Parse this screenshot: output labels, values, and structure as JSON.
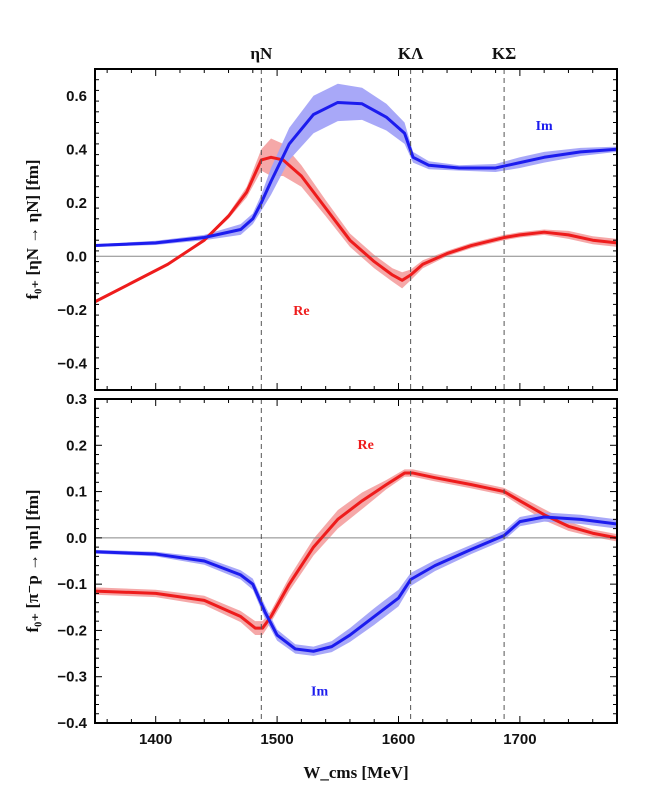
{
  "colors": {
    "re": "#ee1c1c",
    "re_band": "#f4a3a3",
    "im": "#1c1cee",
    "im_band": "#a3a3f8"
  },
  "chart_data": [
    {
      "type": "line",
      "id": "top",
      "ylabel": "f₀₊ [ηN → ηN] [fm]",
      "xlim": [
        1350,
        1780
      ],
      "ylim": [
        -0.5,
        0.7
      ],
      "yticks": [
        -0.4,
        -0.2,
        0.0,
        0.2,
        0.4,
        0.6
      ],
      "ytick_labels": [
        "−0.4",
        "−0.2",
        "0.0",
        "0.2",
        "0.4",
        "0.6"
      ],
      "thresholds": [
        {
          "label": "ηN",
          "x": 1487
        },
        {
          "label": "KΛ",
          "x": 1610
        },
        {
          "label": "KΣ",
          "x": 1687
        }
      ],
      "series": [
        {
          "name": "Re",
          "x": [
            1350,
            1380,
            1410,
            1440,
            1460,
            1475,
            1487,
            1495,
            1505,
            1520,
            1540,
            1560,
            1580,
            1595,
            1603,
            1610,
            1620,
            1640,
            1660,
            1687,
            1700,
            1720,
            1740,
            1760,
            1780
          ],
          "y": [
            -0.17,
            -0.1,
            -0.03,
            0.06,
            0.15,
            0.24,
            0.36,
            0.37,
            0.36,
            0.3,
            0.18,
            0.06,
            -0.02,
            -0.07,
            -0.09,
            -0.07,
            -0.03,
            0.01,
            0.04,
            0.07,
            0.08,
            0.09,
            0.08,
            0.06,
            0.05
          ],
          "band": [
            0.005,
            0.005,
            0.005,
            0.005,
            0.01,
            0.02,
            0.04,
            0.07,
            0.06,
            0.04,
            0.03,
            0.025,
            0.025,
            0.025,
            0.03,
            0.02,
            0.015,
            0.01,
            0.01,
            0.01,
            0.01,
            0.01,
            0.015,
            0.015,
            0.015
          ]
        },
        {
          "name": "Im",
          "x": [
            1350,
            1400,
            1440,
            1470,
            1480,
            1487,
            1495,
            1510,
            1530,
            1550,
            1570,
            1590,
            1605,
            1612,
            1625,
            1650,
            1680,
            1700,
            1720,
            1750,
            1780
          ],
          "y": [
            0.04,
            0.05,
            0.07,
            0.1,
            0.14,
            0.2,
            0.28,
            0.42,
            0.53,
            0.575,
            0.57,
            0.52,
            0.46,
            0.37,
            0.34,
            0.33,
            0.33,
            0.35,
            0.37,
            0.39,
            0.4
          ],
          "band": [
            0.005,
            0.008,
            0.01,
            0.02,
            0.02,
            0.03,
            0.05,
            0.06,
            0.07,
            0.07,
            0.06,
            0.05,
            0.04,
            0.02,
            0.015,
            0.01,
            0.015,
            0.02,
            0.02,
            0.015,
            0.01
          ]
        }
      ],
      "annotations": [
        {
          "text": "Re",
          "x": 1520,
          "y": -0.2,
          "series": "re"
        },
        {
          "text": "Im",
          "x": 1720,
          "y": 0.49,
          "series": "im"
        }
      ]
    },
    {
      "type": "line",
      "id": "bottom",
      "xlabel": "W_cms [MeV]",
      "ylabel": "f₀₊ [π⁻p → ηn] [fm]",
      "xlim": [
        1350,
        1780
      ],
      "ylim": [
        -0.4,
        0.3
      ],
      "xticks": [
        1400,
        1500,
        1600,
        1700
      ],
      "xtick_labels": [
        "1400",
        "1500",
        "1600",
        "1700"
      ],
      "yticks": [
        -0.4,
        -0.3,
        -0.2,
        -0.1,
        0.0,
        0.1,
        0.2,
        0.3
      ],
      "ytick_labels": [
        "−0.4",
        "−0.3",
        "−0.2",
        "−0.1",
        "0.0",
        "0.1",
        "0.2",
        "0.3"
      ],
      "series": [
        {
          "name": "Re",
          "x": [
            1350,
            1400,
            1440,
            1470,
            1482,
            1488,
            1495,
            1510,
            1530,
            1550,
            1570,
            1590,
            1605,
            1612,
            1630,
            1660,
            1687,
            1700,
            1720,
            1740,
            1760,
            1780
          ],
          "y": [
            -0.115,
            -0.12,
            -0.135,
            -0.17,
            -0.195,
            -0.195,
            -0.17,
            -0.1,
            -0.02,
            0.04,
            0.08,
            0.115,
            0.14,
            0.14,
            0.13,
            0.115,
            0.1,
            0.08,
            0.05,
            0.025,
            0.01,
            0.0
          ],
          "band": [
            0.008,
            0.008,
            0.01,
            0.012,
            0.015,
            0.015,
            0.012,
            0.015,
            0.018,
            0.02,
            0.018,
            0.01,
            0.008,
            0.008,
            0.008,
            0.008,
            0.008,
            0.01,
            0.012,
            0.01,
            0.008,
            0.008
          ]
        },
        {
          "name": "Im",
          "x": [
            1350,
            1400,
            1440,
            1470,
            1480,
            1490,
            1500,
            1515,
            1530,
            1545,
            1560,
            1580,
            1600,
            1610,
            1630,
            1660,
            1687,
            1700,
            1720,
            1750,
            1780
          ],
          "y": [
            -0.03,
            -0.035,
            -0.05,
            -0.08,
            -0.1,
            -0.16,
            -0.21,
            -0.24,
            -0.245,
            -0.235,
            -0.21,
            -0.17,
            -0.13,
            -0.09,
            -0.06,
            -0.025,
            0.005,
            0.035,
            0.045,
            0.04,
            0.03
          ],
          "band": [
            0.004,
            0.005,
            0.008,
            0.01,
            0.012,
            0.014,
            0.012,
            0.01,
            0.01,
            0.012,
            0.015,
            0.018,
            0.018,
            0.014,
            0.012,
            0.01,
            0.01,
            0.01,
            0.01,
            0.01,
            0.01
          ]
        }
      ],
      "annotations": [
        {
          "text": "Re",
          "x": 1573,
          "y": 0.203,
          "series": "re"
        },
        {
          "text": "Im",
          "x": 1535,
          "y": -0.33,
          "series": "im"
        }
      ]
    }
  ]
}
